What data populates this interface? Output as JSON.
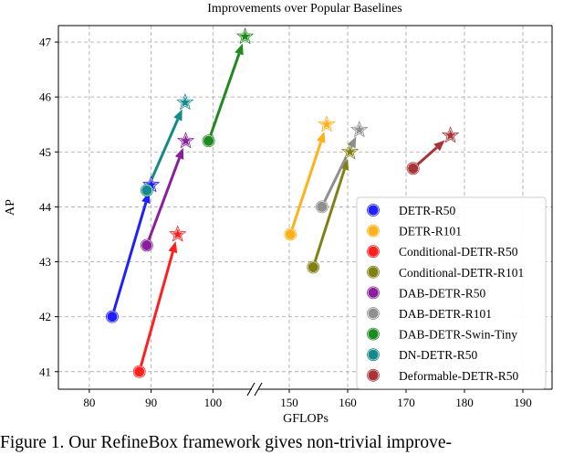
{
  "chart_data": {
    "type": "scatter",
    "title": "Improvements over Popular Baselines",
    "xlabel": "GFLOPs",
    "ylabel": "AP",
    "x_segments": [
      {
        "range": [
          75,
          106
        ],
        "ticks": [
          80,
          90,
          100
        ]
      },
      {
        "range": [
          145,
          195
        ],
        "ticks": [
          150,
          160,
          170,
          180,
          190
        ]
      }
    ],
    "ylim": [
      40.68,
      47.3
    ],
    "yticks": [
      41,
      42,
      43,
      44,
      45,
      46,
      47
    ],
    "grid": true,
    "legend_position": "lower-right",
    "series": [
      {
        "name": "DETR-R50",
        "color": "#1f1fff",
        "from": [
          83.7,
          42.0
        ],
        "to": [
          90.0,
          44.4
        ]
      },
      {
        "name": "DETR-R101",
        "color": "#ffb11a",
        "from": [
          150.2,
          43.5
        ],
        "to": [
          156.4,
          45.5
        ]
      },
      {
        "name": "Conditional-DETR-R50",
        "color": "#ff1f1f",
        "from": [
          88.1,
          41.0
        ],
        "to": [
          94.3,
          43.5
        ]
      },
      {
        "name": "Conditional-DETR-R101",
        "color": "#808014",
        "from": [
          154.1,
          42.9
        ],
        "to": [
          160.4,
          45.0
        ]
      },
      {
        "name": "DAB-DETR-R50",
        "color": "#8a1f9c",
        "from": [
          89.3,
          43.3
        ],
        "to": [
          95.6,
          45.2
        ]
      },
      {
        "name": "DAB-DETR-R101",
        "color": "#8f8f8f",
        "from": [
          155.6,
          44.0
        ],
        "to": [
          162.0,
          45.4
        ]
      },
      {
        "name": "DAB-DETR-Swin-Tiny",
        "color": "#1f8a1f",
        "from": [
          99.3,
          45.2
        ],
        "to": [
          105.2,
          47.1
        ]
      },
      {
        "name": "DN-DETR-R50",
        "color": "#168a8a",
        "from": [
          89.3,
          44.3
        ],
        "to": [
          95.5,
          45.9
        ]
      },
      {
        "name": "Deformable-DETR-R50",
        "color": "#a8343a",
        "from": [
          171.2,
          44.7
        ],
        "to": [
          177.6,
          45.3
        ]
      }
    ]
  },
  "caption": "Figure 1. Our RefineBox framework gives non-trivial improve-"
}
